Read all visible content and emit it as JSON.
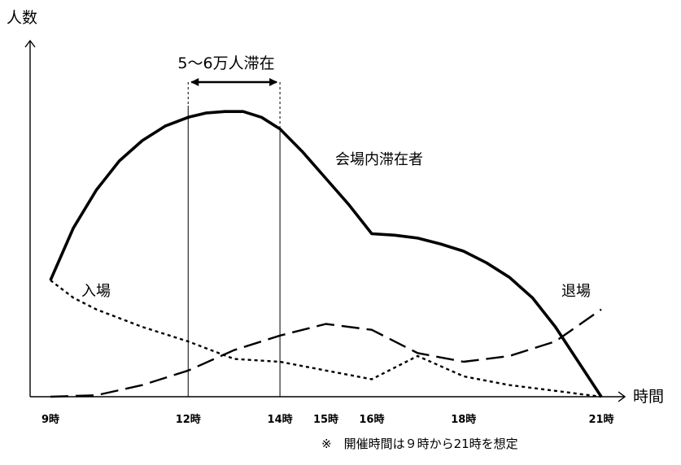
{
  "chart_data": {
    "type": "line",
    "ylabel": "人数",
    "xlabel": "時間",
    "x_tick_labels": [
      "9時",
      "12時",
      "14時",
      "15時",
      "16時",
      "18時",
      "21時"
    ],
    "x_ticks": [
      9,
      12,
      14,
      15,
      16,
      18,
      21
    ],
    "xlim": [
      8.6,
      21.5
    ],
    "ylim": [
      0,
      100
    ],
    "series": [
      {
        "name": "会場内滞在者",
        "style": "solid",
        "x": [
          9,
          9.5,
          10,
          10.5,
          11,
          11.5,
          12,
          12.4,
          12.8,
          13.2,
          13.6,
          14,
          14.5,
          15,
          15.5,
          16,
          16.5,
          17,
          17.5,
          18,
          18.5,
          19,
          19.5,
          20,
          20.5,
          21
        ],
        "y": [
          40,
          58,
          71,
          81,
          88,
          93,
          96,
          97.5,
          98,
          98,
          96,
          92,
          84,
          75,
          66,
          56,
          55.5,
          54.5,
          52.5,
          50,
          46,
          41,
          34,
          24,
          12,
          0
        ]
      },
      {
        "name": "入場",
        "style": "dotted",
        "x": [
          9,
          9.5,
          10,
          11,
          12,
          13,
          14,
          15,
          16,
          17,
          18,
          19,
          20,
          21
        ],
        "y": [
          40,
          34,
          30,
          24,
          19,
          13,
          12,
          9,
          6,
          14,
          7,
          4,
          2,
          0
        ]
      },
      {
        "name": "退場",
        "style": "dashed",
        "x": [
          9,
          10,
          11,
          12,
          13,
          14,
          15,
          16,
          17,
          18,
          19,
          20,
          21
        ],
        "y": [
          0,
          0.5,
          4,
          9,
          16,
          21,
          25,
          23,
          15,
          12,
          14,
          19,
          30
        ]
      }
    ],
    "annotations": {
      "range_label": "5～6万人滞在",
      "range_x": [
        12,
        14
      ],
      "note": "※　開催時間は９時から21時を想定"
    }
  }
}
